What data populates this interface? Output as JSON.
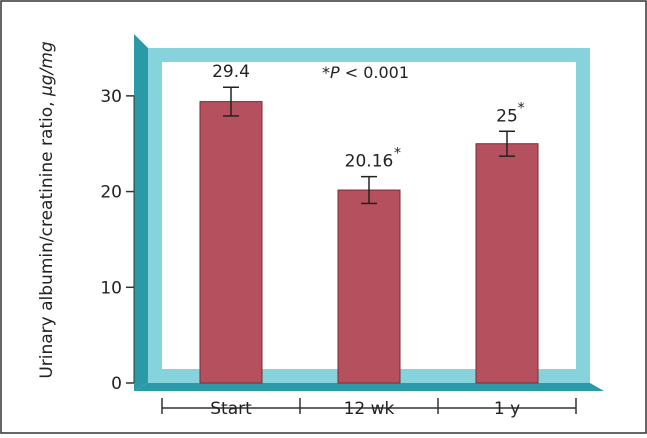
{
  "chart_data": {
    "type": "bar",
    "title": "",
    "xlabel": "",
    "ylabel": "Urinary albumin/creatinine ratio, μg/mg",
    "ylim": [
      0,
      35
    ],
    "yticks": [
      0,
      10,
      20,
      30
    ],
    "categories": [
      "Start",
      "12 wk",
      "1 y"
    ],
    "values": [
      29.4,
      20.16,
      25
    ],
    "error": [
      1.5,
      1.4,
      1.3
    ],
    "data_labels": [
      "29.4",
      "20.16",
      "25"
    ],
    "significant": [
      false,
      true,
      true
    ],
    "significance_mark": "*",
    "annotation": "*P < 0.001",
    "grid": false,
    "colors": {
      "bar": "#b5505e",
      "bar_border": "#7a2a36",
      "frame": "#86d3dc",
      "frame_dark": "#2a9aa6",
      "plot_bg": "#ffffff",
      "outer_border": "#333333"
    }
  }
}
